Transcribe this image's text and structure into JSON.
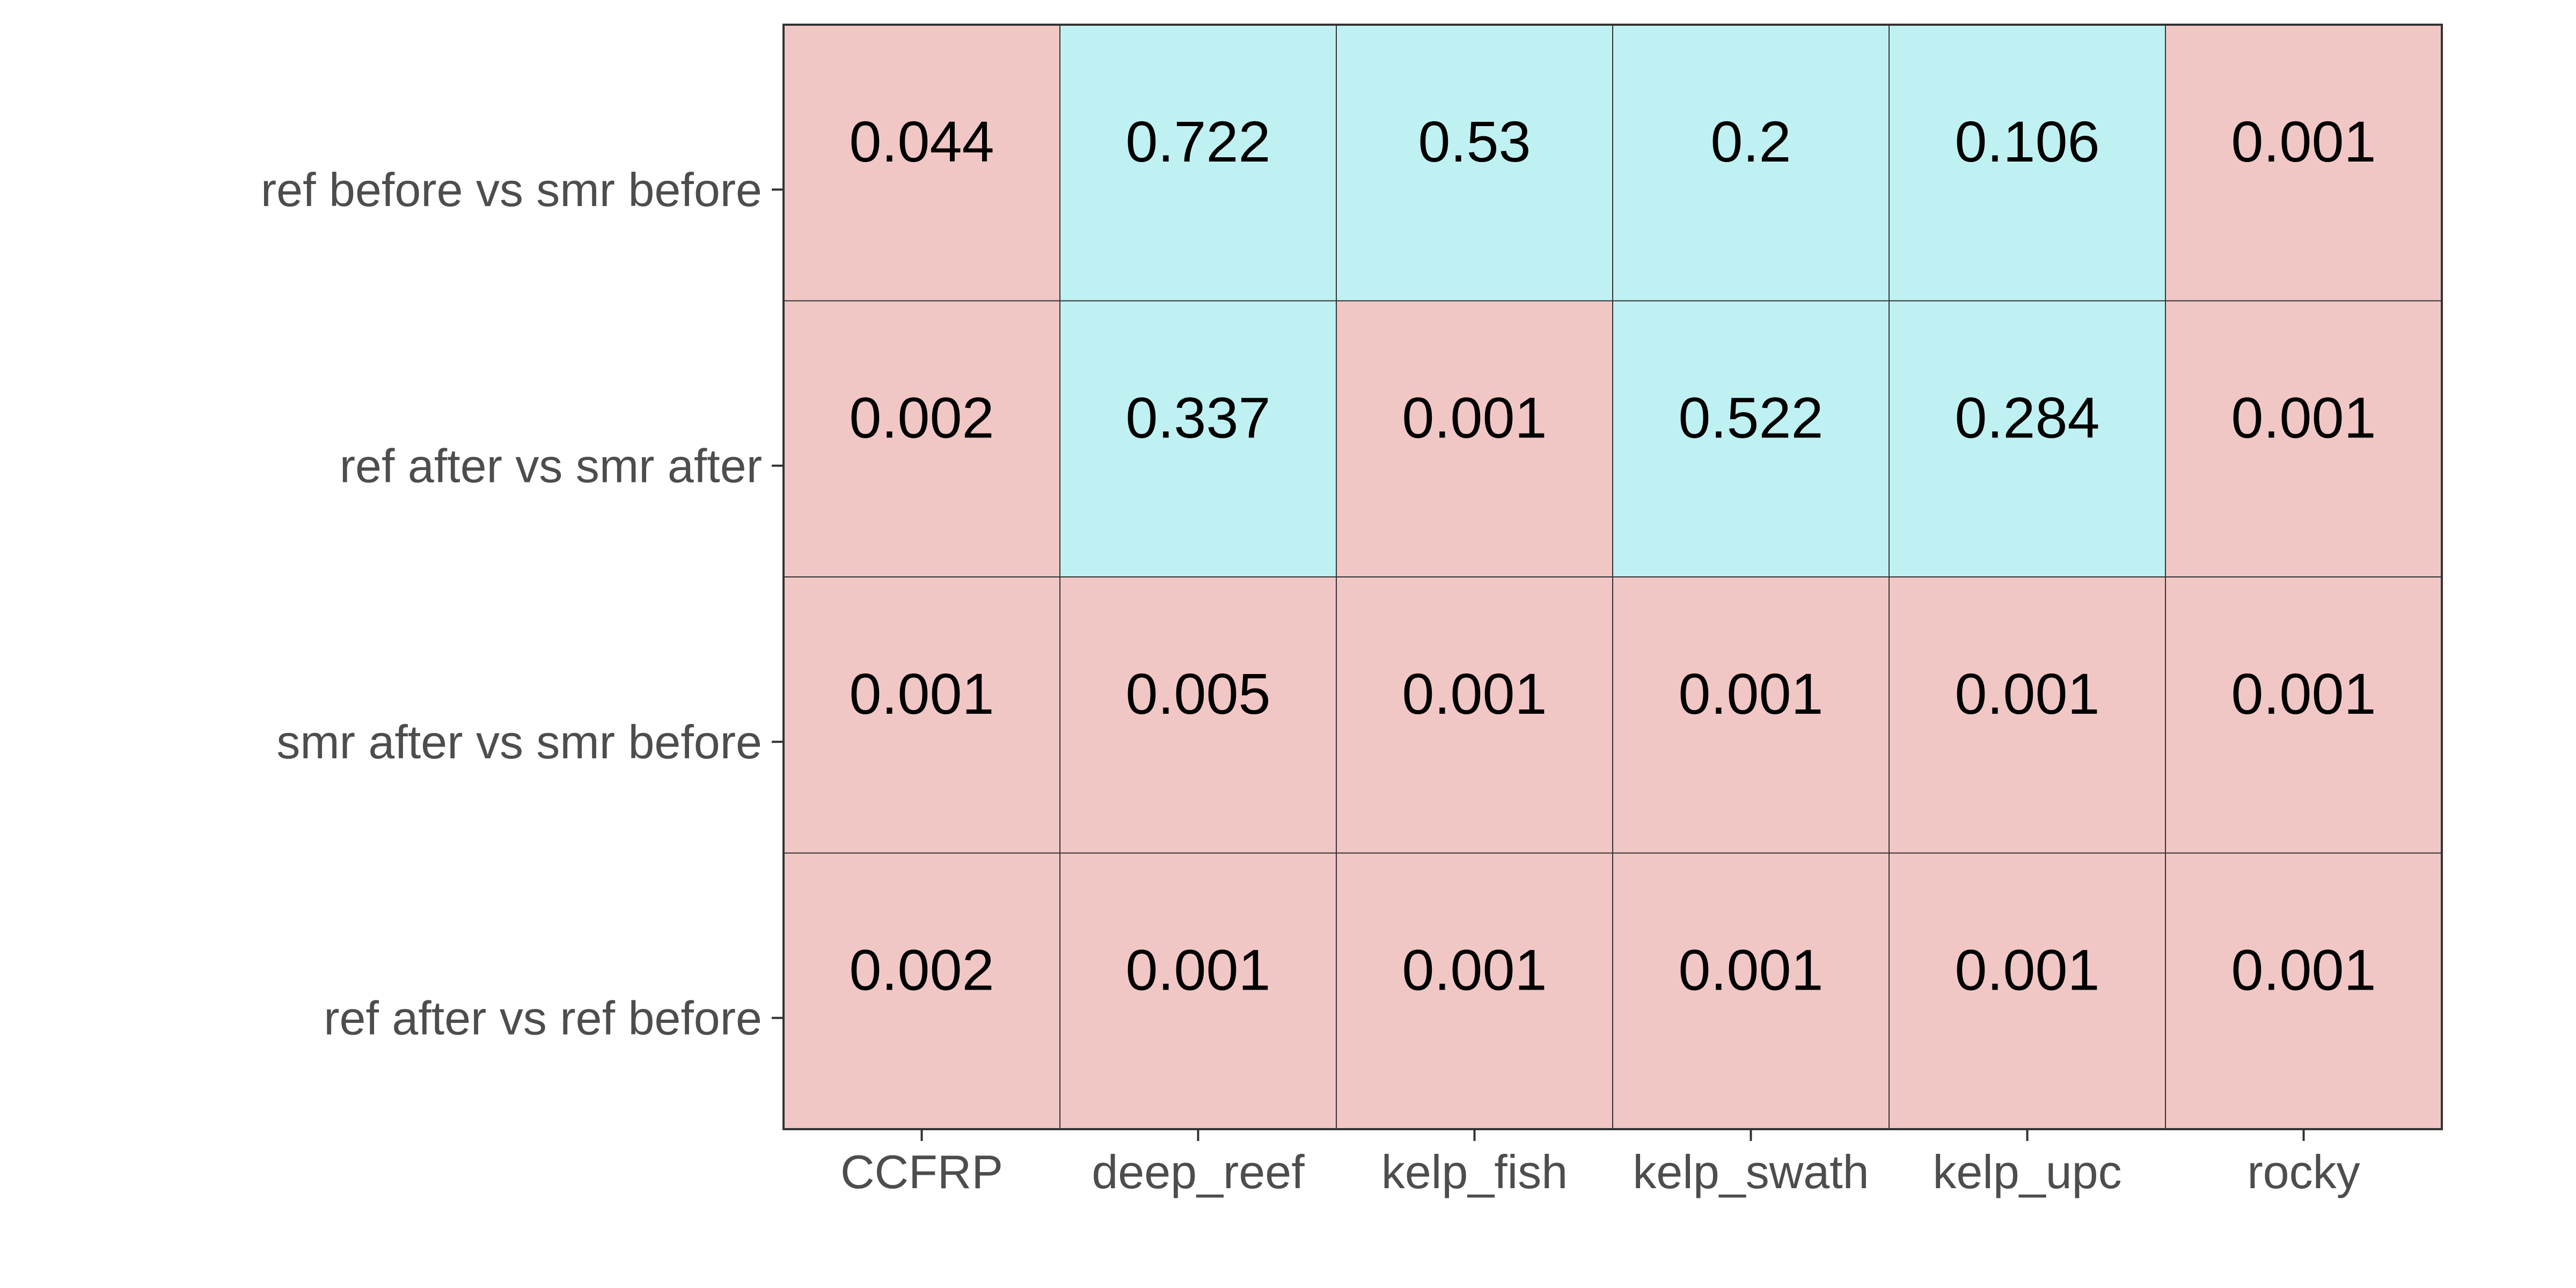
{
  "chart_data": {
    "type": "heatmap",
    "title": "",
    "xlabel": "",
    "ylabel": "",
    "x_categories": [
      "CCFRP",
      "deep_reef",
      "kelp_fish",
      "kelp_swath",
      "kelp_upc",
      "rocky"
    ],
    "y_categories": [
      "ref before vs smr before",
      "ref after vs smr after",
      "smr after vs smr before",
      "ref after vs ref before"
    ],
    "cells": [
      [
        "0.044",
        "0.722",
        "0.53",
        "0.2",
        "0.106",
        "0.001"
      ],
      [
        "0.002",
        "0.337",
        "0.001",
        "0.522",
        "0.284",
        "0.001"
      ],
      [
        "0.001",
        "0.005",
        "0.001",
        "0.001",
        "0.001",
        "0.001"
      ],
      [
        "0.002",
        "0.001",
        "0.001",
        "0.001",
        "0.001",
        "0.001"
      ]
    ],
    "threshold": 0.05,
    "colors": {
      "below_threshold": "#F1C7C5",
      "above_threshold": "#C0F1F2",
      "grid": "#333333",
      "tick_text": "#4d4d4d",
      "cell_text": "#000000"
    },
    "legend": "none",
    "grid": true
  }
}
